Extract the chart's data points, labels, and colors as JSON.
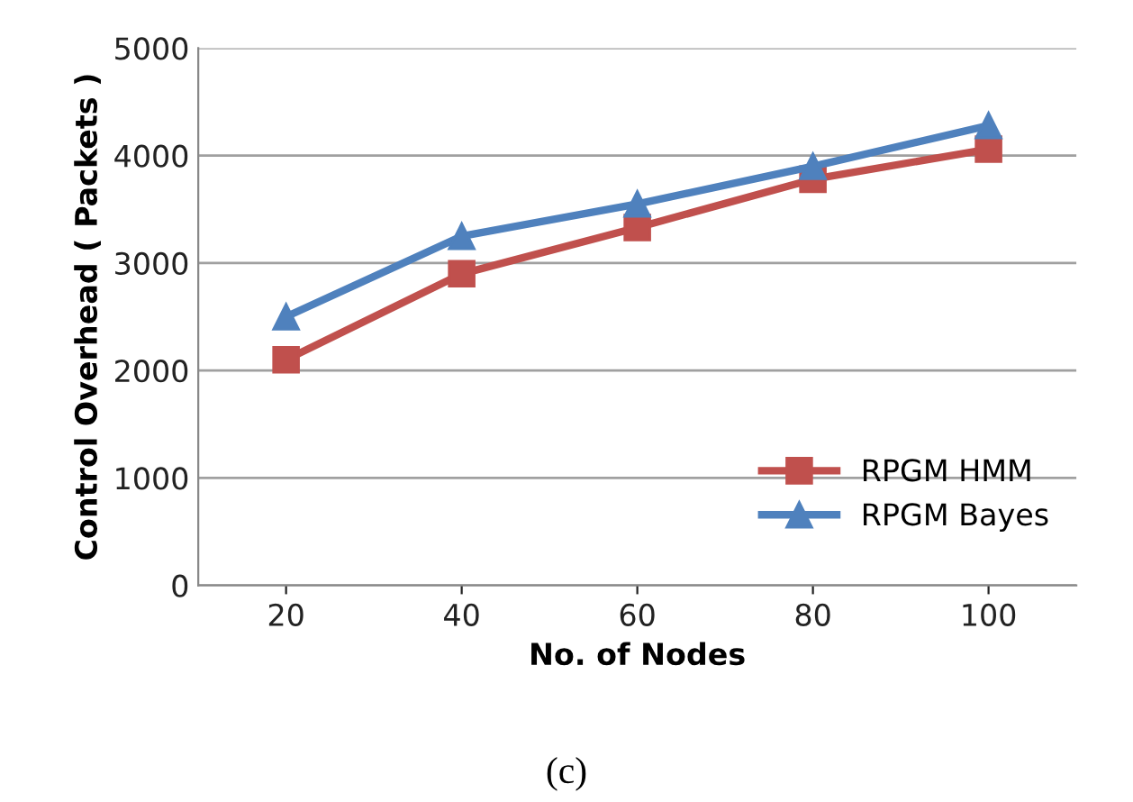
{
  "chart_data": {
    "type": "line",
    "xlabel": "No. of Nodes",
    "ylabel": "Control Overhead ( Packets )",
    "categories": [
      "20",
      "40",
      "60",
      "80",
      "100"
    ],
    "series": [
      {
        "name": "RPGM HMM",
        "color": "#c0504d",
        "marker": "square",
        "values": [
          2100,
          2900,
          3330,
          3780,
          4060
        ]
      },
      {
        "name": "RPGM Bayes",
        "color": "#4f81bd",
        "marker": "triangle",
        "values": [
          2500,
          3250,
          3550,
          3900,
          4280
        ]
      }
    ],
    "ylim": [
      0,
      5000
    ],
    "yticks": [
      0,
      1000,
      2000,
      3000,
      4000,
      5000
    ],
    "grid": "y",
    "legend": "bottom right",
    "annotations": [
      "(c)"
    ]
  }
}
